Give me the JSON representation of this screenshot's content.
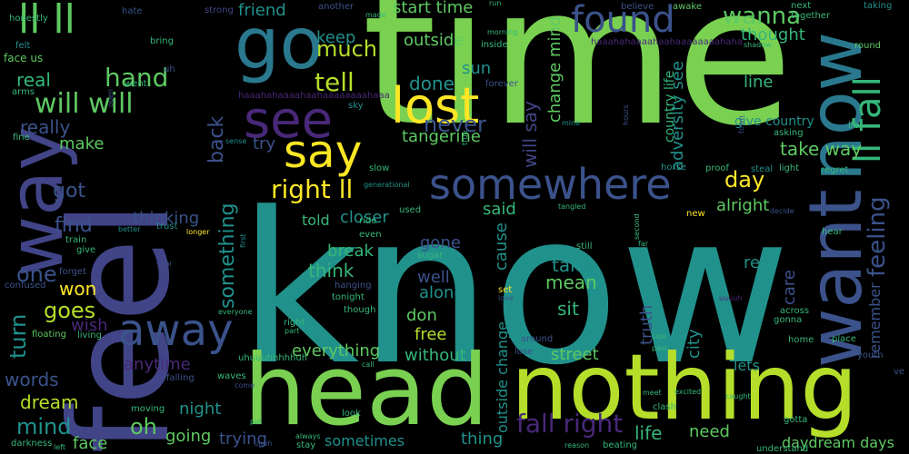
{
  "cloud": {
    "palette": [
      "#7ad151",
      "#22a884",
      "#2a788e",
      "#414487",
      "#440154",
      "#fde725",
      "#35b779",
      "#21918c",
      "#3b528b",
      "#482878",
      "#5ec962",
      "#b5de2b"
    ],
    "words": [
      {
        "t": "know",
        "c": "#21918c",
        "big": true
      },
      {
        "t": "time",
        "c": "#7ad151",
        "big": true
      },
      {
        "t": "feel",
        "c": "#414487",
        "big": true
      },
      {
        "t": "head",
        "c": "#7ad151"
      },
      {
        "t": "nothing",
        "c": "#b5de2b"
      },
      {
        "t": "want",
        "c": "#3b528b"
      },
      {
        "t": "now",
        "c": "#2a788e"
      },
      {
        "t": "way",
        "c": "#414487"
      },
      {
        "t": "go",
        "c": "#2a788e"
      },
      {
        "t": "see",
        "c": "#482878"
      },
      {
        "t": "lost",
        "c": "#fde725"
      },
      {
        "t": "say",
        "c": "#fde725"
      },
      {
        "t": "found",
        "c": "#3b528b"
      },
      {
        "t": "somewhere",
        "c": "#3b528b"
      },
      {
        "t": "away",
        "c": "#3b528b"
      },
      {
        "t": "ll fall",
        "c": "#35b779"
      },
      {
        "t": "ll ll",
        "c": "#5ec962"
      },
      {
        "t": "will will",
        "c": "#5ec962"
      },
      {
        "t": "hand",
        "c": "#5ec962"
      },
      {
        "t": "tell",
        "c": "#b5de2b"
      },
      {
        "t": "right ll",
        "c": "#fde725"
      },
      {
        "t": "wanna",
        "c": "#5ec962"
      },
      {
        "t": "feeling",
        "c": "#3b528b"
      },
      {
        "t": "fall right",
        "c": "#482878"
      },
      {
        "t": "one",
        "c": "#3b528b"
      },
      {
        "t": "mind",
        "c": "#21918c"
      },
      {
        "t": "goes",
        "c": "#b5de2b"
      },
      {
        "t": "turn",
        "c": "#21918c"
      },
      {
        "t": "oh",
        "c": "#5ec962"
      },
      {
        "t": "real",
        "c": "#35b779"
      },
      {
        "t": "really",
        "c": "#3b528b"
      },
      {
        "t": "make",
        "c": "#5ec962"
      },
      {
        "t": "got",
        "c": "#3b528b"
      },
      {
        "t": "find",
        "c": "#3b528b"
      },
      {
        "t": "won",
        "c": "#fde725"
      },
      {
        "t": "wish",
        "c": "#482878"
      },
      {
        "t": "words",
        "c": "#3b528b"
      },
      {
        "t": "dream",
        "c": "#b5de2b"
      },
      {
        "t": "face",
        "c": "#5ec962"
      },
      {
        "t": "much",
        "c": "#b5de2b"
      },
      {
        "t": "friend",
        "c": "#21918c"
      },
      {
        "t": "keep",
        "c": "#21918c"
      },
      {
        "t": "start time",
        "c": "#5ec962"
      },
      {
        "t": "outside",
        "c": "#5ec962"
      },
      {
        "t": "never",
        "c": "#3b528b"
      },
      {
        "t": "done",
        "c": "#21918c"
      },
      {
        "t": "sun",
        "c": "#21918c"
      },
      {
        "t": "tangerine",
        "c": "#5ec962"
      },
      {
        "t": "change mind",
        "c": "#5ec962"
      },
      {
        "t": "thought",
        "c": "#35b779"
      },
      {
        "t": "back",
        "c": "#3b528b"
      },
      {
        "t": "something",
        "c": "#21918c"
      },
      {
        "t": "try",
        "c": "#3b528b"
      },
      {
        "t": "thinking",
        "c": "#3b528b"
      },
      {
        "t": "day",
        "c": "#fde725"
      },
      {
        "t": "line",
        "c": "#35b779"
      },
      {
        "t": "take way",
        "c": "#5ec962"
      },
      {
        "t": "alright",
        "c": "#5ec962"
      },
      {
        "t": "said",
        "c": "#35b779"
      },
      {
        "t": "told",
        "c": "#35b779"
      },
      {
        "t": "closer",
        "c": "#21918c"
      },
      {
        "t": "think",
        "c": "#35b779"
      },
      {
        "t": "break",
        "c": "#35b779"
      },
      {
        "t": "gone",
        "c": "#3b528b"
      },
      {
        "t": "cause",
        "c": "#21918c"
      },
      {
        "t": "take",
        "c": "#21918c"
      },
      {
        "t": "mean",
        "c": "#5ec962"
      },
      {
        "t": "well",
        "c": "#3b528b"
      },
      {
        "t": "along",
        "c": "#21918c"
      },
      {
        "t": "sit",
        "c": "#35b779"
      },
      {
        "t": "don",
        "c": "#5ec962"
      },
      {
        "t": "free",
        "c": "#b5de2b"
      },
      {
        "t": "everything",
        "c": "#5ec962"
      },
      {
        "t": "without",
        "c": "#35b779"
      },
      {
        "t": "street",
        "c": "#5ec962"
      },
      {
        "t": "anytime",
        "c": "#482878"
      },
      {
        "t": "night",
        "c": "#21918c"
      },
      {
        "t": "going",
        "c": "#5ec962"
      },
      {
        "t": "trying",
        "c": "#3b528b"
      },
      {
        "t": "sometimes",
        "c": "#21918c"
      },
      {
        "t": "thing",
        "c": "#21918c"
      },
      {
        "t": "life",
        "c": "#35b779"
      },
      {
        "t": "need",
        "c": "#5ec962"
      },
      {
        "t": "care",
        "c": "#3b528b"
      },
      {
        "t": "re",
        "c": "#21918c"
      },
      {
        "t": "lets",
        "c": "#21918c"
      },
      {
        "t": "remember",
        "c": "#3b528b"
      },
      {
        "t": "daydream days",
        "c": "#5ec962"
      },
      {
        "t": "will say",
        "c": "#414487"
      },
      {
        "t": "adversity see",
        "c": "#21918c"
      },
      {
        "t": "outside change",
        "c": "#21918c"
      },
      {
        "t": "truth",
        "c": "#3b528b"
      },
      {
        "t": "city",
        "c": "#21918c"
      },
      {
        "t": "give country",
        "c": "#21918c"
      },
      {
        "t": "country life",
        "c": "#35b779"
      },
      {
        "t": "uhuuuhhhhhuh",
        "c": "#35b779"
      },
      {
        "t": "haaahahaaaahaahaaaaaaaahaha",
        "c": "#482878"
      },
      {
        "t": "haaahahaaaahaahaaaaaaaahaaa",
        "c": "#482878"
      },
      {
        "t": "honestly",
        "c": "#35b779"
      },
      {
        "t": "hate",
        "c": "#3b528b"
      },
      {
        "t": "together",
        "c": "#35b779"
      },
      {
        "t": "felt",
        "c": "#21918c"
      },
      {
        "t": "bring",
        "c": "#35b779"
      },
      {
        "t": "face us",
        "c": "#5ec962"
      },
      {
        "t": "went",
        "c": "#35b779"
      },
      {
        "t": "arms",
        "c": "#35b779"
      },
      {
        "t": "strong",
        "c": "#414487"
      },
      {
        "t": "another",
        "c": "#3b528b"
      },
      {
        "t": "made",
        "c": "#35b779"
      },
      {
        "t": "believe",
        "c": "#3b528b"
      },
      {
        "t": "awake",
        "c": "#5ec962"
      },
      {
        "t": "next",
        "c": "#35b779"
      },
      {
        "t": "taking",
        "c": "#21918c"
      },
      {
        "t": "morning",
        "c": "#35b779"
      },
      {
        "t": "inside",
        "c": "#35b779"
      },
      {
        "t": "round",
        "c": "#5ec962"
      },
      {
        "t": "shadow",
        "c": "#35b779"
      },
      {
        "t": "forever",
        "c": "#3b528b"
      },
      {
        "t": "sky",
        "c": "#21918c"
      },
      {
        "t": "mine",
        "c": "#21918c"
      },
      {
        "t": "lie",
        "c": "#35b779"
      },
      {
        "t": "asking",
        "c": "#35b779"
      },
      {
        "t": "fine",
        "c": "#35b779"
      },
      {
        "t": "sense",
        "c": "#21918c"
      },
      {
        "t": "slow",
        "c": "#35b779"
      },
      {
        "t": "generational",
        "c": "#21918c"
      },
      {
        "t": "horse",
        "c": "#21918c"
      },
      {
        "t": "proof",
        "c": "#35b779"
      },
      {
        "t": "steal",
        "c": "#21918c"
      },
      {
        "t": "light",
        "c": "#35b779"
      },
      {
        "t": "regret",
        "c": "#35b779"
      },
      {
        "t": "better",
        "c": "#21918c"
      },
      {
        "t": "trust",
        "c": "#21918c"
      },
      {
        "t": "longer",
        "c": "#fde725"
      },
      {
        "t": "first",
        "c": "#21918c"
      },
      {
        "t": "train",
        "c": "#35b779"
      },
      {
        "t": "give",
        "c": "#35b779"
      },
      {
        "t": "even",
        "c": "#35b779"
      },
      {
        "t": "used",
        "c": "#35b779"
      },
      {
        "t": "ride",
        "c": "#35b779"
      },
      {
        "t": "tangled",
        "c": "#35b779"
      },
      {
        "t": "new",
        "c": "#fde725"
      },
      {
        "t": "decide",
        "c": "#3b528b"
      },
      {
        "t": "hear",
        "c": "#35b779"
      },
      {
        "t": "year",
        "c": "#3b528b"
      },
      {
        "t": "forget",
        "c": "#3b528b"
      },
      {
        "t": "confused",
        "c": "#3b528b"
      },
      {
        "t": "sugar",
        "c": "#35b779"
      },
      {
        "t": "hanging",
        "c": "#3b528b"
      },
      {
        "t": "tonight",
        "c": "#35b779"
      },
      {
        "t": "set",
        "c": "#fde725"
      },
      {
        "t": "love",
        "c": "#3b528b"
      },
      {
        "t": "though",
        "c": "#35b779"
      },
      {
        "t": "still",
        "c": "#35b779"
      },
      {
        "t": "second",
        "c": "#35b779"
      },
      {
        "t": "far",
        "c": "#35b779"
      },
      {
        "t": "across",
        "c": "#35b779"
      },
      {
        "t": "gonna",
        "c": "#35b779"
      },
      {
        "t": "floating",
        "c": "#5ec962"
      },
      {
        "t": "living",
        "c": "#35b779"
      },
      {
        "t": "everyone",
        "c": "#35b779"
      },
      {
        "t": "right",
        "c": "#35b779"
      },
      {
        "t": "part",
        "c": "#35b779"
      },
      {
        "t": "around",
        "c": "#3b528b"
      },
      {
        "t": "lose",
        "c": "#3b528b"
      },
      {
        "t": "side",
        "c": "#35b779"
      },
      {
        "t": "past",
        "c": "#35b779"
      },
      {
        "t": "home",
        "c": "#35b779"
      },
      {
        "t": "place",
        "c": "#35b779"
      },
      {
        "t": "youth",
        "c": "#3b528b"
      },
      {
        "t": "ve",
        "c": "#3b528b"
      },
      {
        "t": "falling",
        "c": "#3b528b"
      },
      {
        "t": "waves",
        "c": "#35b779"
      },
      {
        "t": "call",
        "c": "#35b779"
      },
      {
        "t": "clash",
        "c": "#35b779"
      },
      {
        "t": "meet",
        "c": "#35b779"
      },
      {
        "t": "excited",
        "c": "#35b779"
      },
      {
        "t": "caught",
        "c": "#35b779"
      },
      {
        "t": "come",
        "c": "#3b528b"
      },
      {
        "t": "moving",
        "c": "#35b779"
      },
      {
        "t": "put",
        "c": "#35b779"
      },
      {
        "t": "look",
        "c": "#35b779"
      },
      {
        "t": "gotta",
        "c": "#35b779"
      },
      {
        "t": "darkness",
        "c": "#35b779"
      },
      {
        "t": "left",
        "c": "#35b779"
      },
      {
        "t": "always",
        "c": "#35b779"
      },
      {
        "t": "stay",
        "c": "#35b779"
      },
      {
        "t": "reason",
        "c": "#35b779"
      },
      {
        "t": "beating",
        "c": "#35b779"
      },
      {
        "t": "understand",
        "c": "#35b779"
      },
      {
        "t": "uh",
        "c": "#3b528b"
      },
      {
        "t": "uhuh",
        "c": "#3b528b"
      },
      {
        "t": "run",
        "c": "#35b779"
      },
      {
        "t": "open",
        "c": "#3b528b"
      },
      {
        "t": "true",
        "c": "#35b779"
      },
      {
        "t": "town",
        "c": "#3b528b"
      },
      {
        "t": "hours",
        "c": "#3b528b"
      },
      {
        "t": "uuuuh",
        "c": "#482878"
      }
    ]
  }
}
